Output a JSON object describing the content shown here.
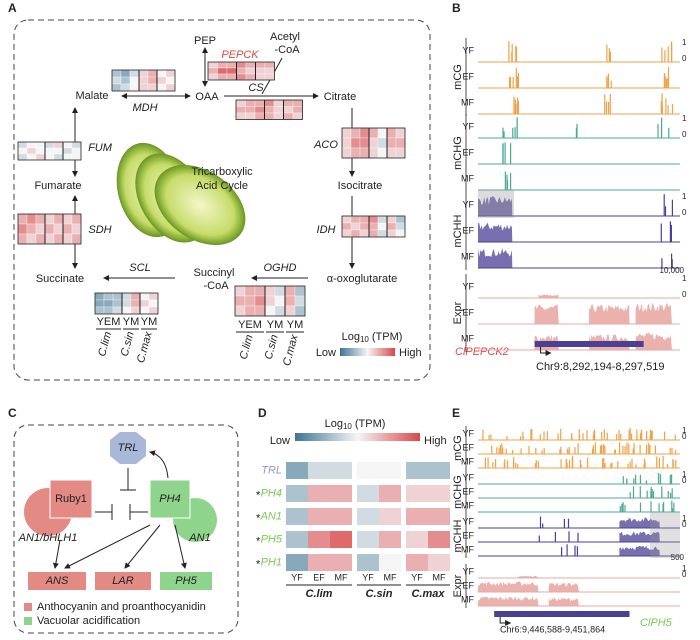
{
  "A": {
    "label": "A",
    "pep": "PEP",
    "pepck": "PEPCK",
    "acetyl": [
      "Acetyl",
      "-CoA"
    ],
    "oaa": "OAA",
    "cs": "CS",
    "citrate": "Citrate",
    "malate": "Malate",
    "mdh": "MDH",
    "fum": "FUM",
    "aco": "ACO",
    "center": [
      "Tricarboxylic",
      "Acid Cycle"
    ],
    "fumarate": "Fumarate",
    "isocitrate": "Isocitrate",
    "sdh": "SDH",
    "idh": "IDH",
    "succinate": "Succinate",
    "scl": "SCL",
    "succinyl": [
      "Succinyl",
      "-CoA"
    ],
    "oghd": "OGHD",
    "oxo": "α-oxoglutarate",
    "groups": [
      "YEM",
      "YM",
      "YM"
    ],
    "species": [
      "C.lim",
      "C.sin",
      "C.max"
    ],
    "legend": {
      "title": "Log",
      "sub": "10",
      "unit": "(TPM)",
      "low": "Low",
      "high": "High"
    },
    "clim": [
      0,
      10
    ],
    "colors": {
      "low": "#3f7596",
      "mid": "#f5f5f5",
      "high": "#d9474a"
    },
    "heatmaps": {
      "pepck": [
        [
          6,
          7,
          7,
          8,
          7,
          7,
          7
        ],
        [
          7,
          9,
          9,
          7,
          6,
          6,
          6
        ],
        [
          6,
          7,
          7,
          8,
          7,
          6,
          6
        ]
      ],
      "malate": [
        [
          3,
          2,
          4,
          6,
          7,
          5,
          6
        ],
        [
          4,
          3,
          5,
          6,
          7,
          6,
          5
        ],
        [
          3,
          4,
          5,
          6,
          6,
          5,
          6
        ]
      ],
      "cs": [
        [
          6,
          7,
          7,
          8,
          6,
          7,
          7
        ],
        [
          7,
          7,
          8,
          7,
          6,
          6,
          7
        ],
        [
          6,
          6,
          7,
          7,
          6,
          7,
          6
        ]
      ],
      "fum": [
        [
          4,
          5,
          5,
          4,
          6,
          5,
          4
        ],
        [
          5,
          6,
          5,
          5,
          5,
          4,
          5
        ],
        [
          4,
          5,
          6,
          5,
          4,
          5,
          5
        ]
      ],
      "aco": [
        [
          6,
          7,
          8,
          7,
          5,
          7,
          6
        ],
        [
          6,
          8,
          8,
          6,
          4,
          7,
          7
        ],
        [
          6,
          7,
          7,
          6,
          5,
          6,
          6
        ]
      ],
      "sdh": [
        [
          7,
          8,
          7,
          6,
          7,
          6,
          7
        ],
        [
          8,
          7,
          6,
          7,
          6,
          7,
          6
        ],
        [
          7,
          6,
          7,
          6,
          7,
          6,
          7
        ]
      ],
      "idh": [
        [
          6,
          7,
          7,
          8,
          4,
          6,
          3
        ],
        [
          7,
          6,
          7,
          7,
          5,
          7,
          4
        ],
        [
          6,
          7,
          6,
          7,
          4,
          6,
          5
        ]
      ],
      "succ": [
        [
          2,
          3,
          3,
          4,
          7,
          5,
          6
        ],
        [
          2,
          2,
          3,
          4,
          7,
          6,
          5
        ],
        [
          3,
          3,
          4,
          5,
          6,
          5,
          6
        ]
      ],
      "oghd": [
        [
          6,
          7,
          7,
          6,
          4,
          7,
          3
        ],
        [
          7,
          7,
          8,
          6,
          5,
          7,
          4
        ],
        [
          6,
          7,
          7,
          5,
          4,
          6,
          3
        ]
      ]
    }
  },
  "B": {
    "label": "B",
    "groups": [
      "mCG",
      "mCHG",
      "mCHH",
      "Expr"
    ],
    "rows": [
      "YF",
      "EF",
      "MF"
    ],
    "scale_top": "1",
    "scale_bottom": "0",
    "range": "10,000",
    "gene": "ClPEPCK2",
    "locus": "Chr9:8,292,194-8,297,519"
  },
  "C": {
    "label": "C",
    "trl": "TRL",
    "ruby": "Ruby1",
    "ph4": "PH4",
    "an1bhlh": "AN1/bHLH1",
    "an1": "AN1",
    "ans": "ANS",
    "lar": "LAR",
    "ph5": "PH5",
    "legend": [
      "Anthocyanin and proanthocyanidin",
      "Vacuolar acidification"
    ]
  },
  "D": {
    "label": "D",
    "legend": {
      "title": "Log",
      "sub": "10",
      "unit": "(TPM)",
      "low": "Low",
      "high": "High"
    },
    "star": "*",
    "genes": [
      "TRL",
      "PH4",
      "AN1",
      "PH5",
      "PH1"
    ],
    "columns": [
      "YF",
      "EF",
      "MF",
      "YF",
      "MF",
      "YF",
      "MF"
    ],
    "species": [
      "C.lim",
      "C.sin",
      "C.max"
    ],
    "values": [
      [
        2,
        4,
        4,
        5,
        5,
        3,
        3
      ],
      [
        3,
        7,
        7,
        4,
        7,
        6,
        6
      ],
      [
        3,
        7,
        7,
        4,
        6,
        7,
        7
      ],
      [
        3,
        8,
        9,
        4,
        7,
        6,
        8
      ],
      [
        2,
        7,
        7,
        3,
        5,
        7,
        6
      ]
    ]
  },
  "E": {
    "label": "E",
    "groups": [
      "mCG",
      "mCHG",
      "mCHH",
      "Expr"
    ],
    "rows": [
      "YF",
      "EF",
      "MF"
    ],
    "scale_top": "1",
    "scale_bottom": "0",
    "range": "500",
    "gene": "ClPH5",
    "locus": "Chr6:9,446,588-9,451,864"
  }
}
